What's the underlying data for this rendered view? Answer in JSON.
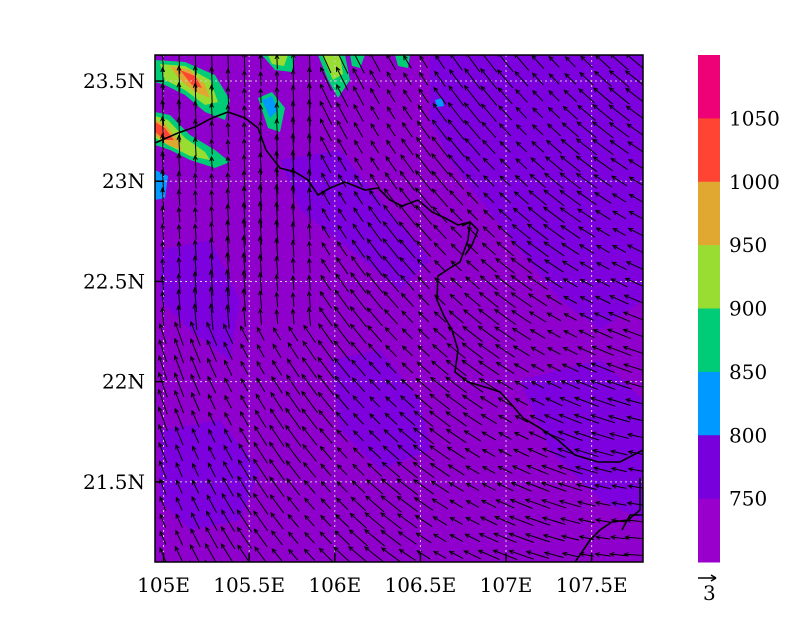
{
  "map": {
    "x_tick_labels": [
      "105E",
      "105.5E",
      "106E",
      "106.5E",
      "107E",
      "107.5E"
    ],
    "y_tick_labels": [
      "23.5N",
      "23N",
      "22.5N",
      "22N",
      "21.5N"
    ],
    "x_tick_values": [
      105.0,
      105.5,
      106.0,
      106.5,
      107.0,
      107.5
    ],
    "y_tick_values": [
      23.5,
      23.0,
      22.5,
      22.0,
      21.5
    ],
    "lon_range": [
      104.95,
      107.8
    ],
    "lat_range": [
      21.1,
      23.63
    ],
    "gridlines": "dotted"
  },
  "colorbar": {
    "labels": [
      "1050",
      "1000",
      "950",
      "900",
      "850",
      "800",
      "750"
    ],
    "colors": [
      "#ee0077",
      "#ff4433",
      "#e0a830",
      "#99dd33",
      "#00cc77",
      "#0099ff",
      "#7700dd",
      "#9900cc"
    ]
  },
  "vector_reference": {
    "label": "3"
  },
  "colors": {
    "field_background": "#9000cc",
    "field_lower_band": "#7a00e0",
    "arrow": "#000000",
    "grid": "#cccccc",
    "border_line": "#000000"
  }
}
